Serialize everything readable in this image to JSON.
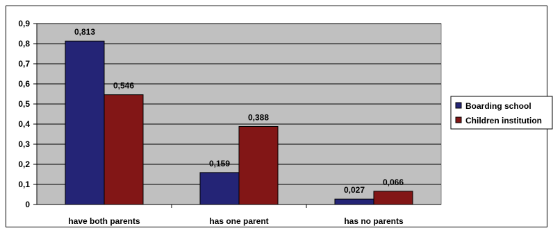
{
  "chart_data": {
    "type": "bar",
    "title": "",
    "xlabel": "",
    "ylabel": "",
    "categories": [
      "have both parents",
      "has one parent",
      "has no parents"
    ],
    "series": [
      {
        "name": "Boarding school",
        "values": [
          0.813,
          0.159,
          0.027
        ],
        "labels": [
          "0,813",
          "0,159",
          "0,027"
        ],
        "color": "#242476"
      },
      {
        "name": "Children institution",
        "values": [
          0.546,
          0.388,
          0.066
        ],
        "labels": [
          "0,546",
          "0,388",
          "0,066"
        ],
        "color": "#821616"
      }
    ],
    "ylim": [
      0,
      0.9
    ],
    "yticks": [
      0,
      0.1,
      0.2,
      0.3,
      0.4,
      0.5,
      0.6,
      0.7,
      0.8,
      0.9
    ],
    "ytick_labels": [
      "0",
      "0,1",
      "0,2",
      "0,3",
      "0,4",
      "0,5",
      "0,6",
      "0,7",
      "0,8",
      "0,9"
    ],
    "grid": true,
    "plot_background": "#c0c0c0",
    "legend_position": "right"
  }
}
